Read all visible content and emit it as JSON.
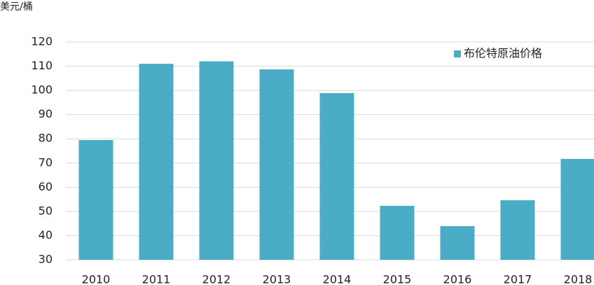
{
  "chart_data": {
    "type": "bar",
    "y_label": "美元/桶",
    "categories": [
      "2010",
      "2011",
      "2012",
      "2013",
      "2014",
      "2015",
      "2016",
      "2017",
      "2018"
    ],
    "series": [
      {
        "name": "布伦特原油价格",
        "color": "#4bacc6",
        "values": [
          79.5,
          111,
          112,
          108.7,
          98.9,
          52.3,
          43.9,
          54.6,
          71.7
        ]
      }
    ],
    "ylim": [
      30,
      120
    ],
    "yticks": [
      30,
      40,
      50,
      60,
      70,
      80,
      90,
      100,
      110,
      120
    ],
    "grid": true,
    "legend": "top-right"
  }
}
